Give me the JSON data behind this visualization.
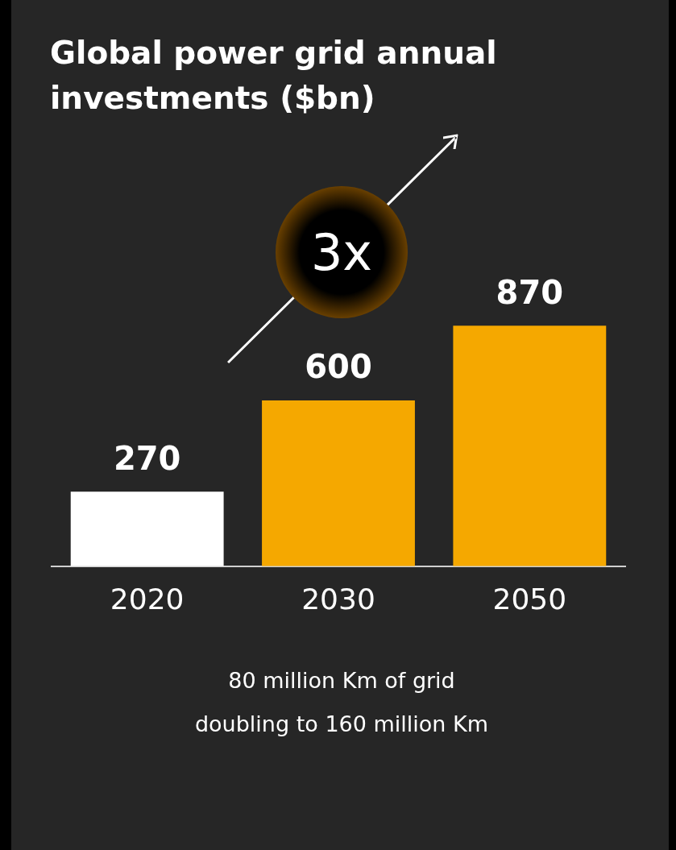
{
  "chart_data": {
    "type": "bar",
    "title": "Global power grid annual investments ($bn)",
    "categories": [
      "2020",
      "2030",
      "2050"
    ],
    "values": [
      270,
      600,
      870
    ],
    "colors": [
      "#ffffff",
      "#f5a800",
      "#f5a800"
    ],
    "data_labels": true,
    "legend": false,
    "annotations": [
      "3x",
      "80 million  Km of grid\ndoubling to 160 million Km"
    ]
  }
}
